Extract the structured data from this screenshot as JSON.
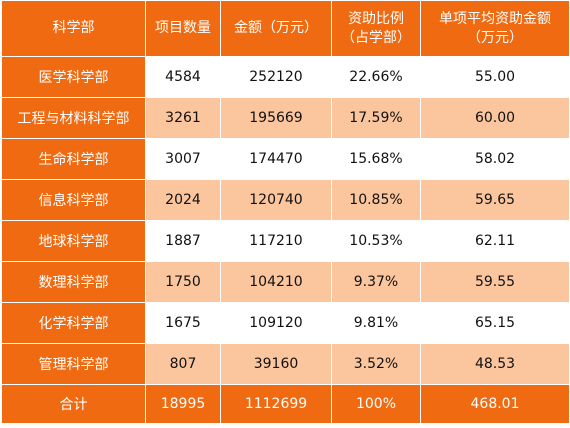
{
  "table": {
    "headers": [
      "科学部",
      "项目数量",
      "金额（万元）",
      "资助比例\n（占学部）",
      "单项平均资助金额\n（万元）"
    ],
    "rows": [
      [
        "医学科学部",
        "4584",
        "252120",
        "22.66%",
        "55.00"
      ],
      [
        "工程与材料科学部",
        "3261",
        "195669",
        "17.59%",
        "60.00"
      ],
      [
        "生命科学部",
        "3007",
        "174470",
        "15.68%",
        "58.02"
      ],
      [
        "信息科学部",
        "2024",
        "120740",
        "10.85%",
        "59.65"
      ],
      [
        "地球科学部",
        "1887",
        "117210",
        "10.53%",
        "62.11"
      ],
      [
        "数理科学部",
        "1750",
        "104210",
        "9.37%",
        "59.55"
      ],
      [
        "化学科学部",
        "1675",
        "109120",
        "9.81%",
        "65.15"
      ],
      [
        "管理科学部",
        "807",
        "39160",
        "3.52%",
        "48.53"
      ]
    ],
    "total": [
      "合计",
      "18995",
      "1112699",
      "100%",
      "468.01"
    ]
  }
}
